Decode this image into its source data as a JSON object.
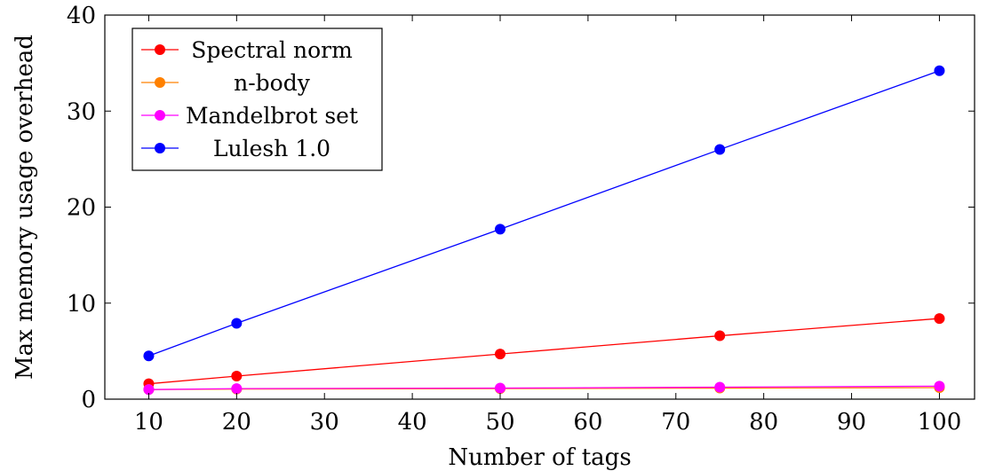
{
  "chart_data": {
    "type": "line",
    "title": "",
    "xlabel": "Number of tags",
    "ylabel": "Max memory usage overhead",
    "x": [
      10,
      20,
      50,
      75,
      100
    ],
    "xlim": [
      5,
      104
    ],
    "ylim": [
      0,
      40
    ],
    "xticks": [
      10,
      20,
      30,
      40,
      50,
      60,
      70,
      80,
      90,
      100
    ],
    "yticks": [
      0,
      10,
      20,
      30,
      40
    ],
    "grid": false,
    "legend_position": "top-left",
    "series": [
      {
        "name": "Spectral norm",
        "color": "#ff0000",
        "values": [
          1.6,
          2.4,
          4.7,
          6.6,
          8.4
        ]
      },
      {
        "name": "n-body",
        "color": "#ff8000",
        "values": [
          1.0,
          1.05,
          1.1,
          1.15,
          1.2
        ]
      },
      {
        "name": "Mandelbrot set",
        "color": "#ff00ff",
        "values": [
          1.0,
          1.1,
          1.15,
          1.25,
          1.35
        ]
      },
      {
        "name": "Lulesh 1.0",
        "color": "#0000ff",
        "values": [
          4.5,
          7.9,
          17.7,
          26.0,
          34.2
        ]
      }
    ]
  }
}
